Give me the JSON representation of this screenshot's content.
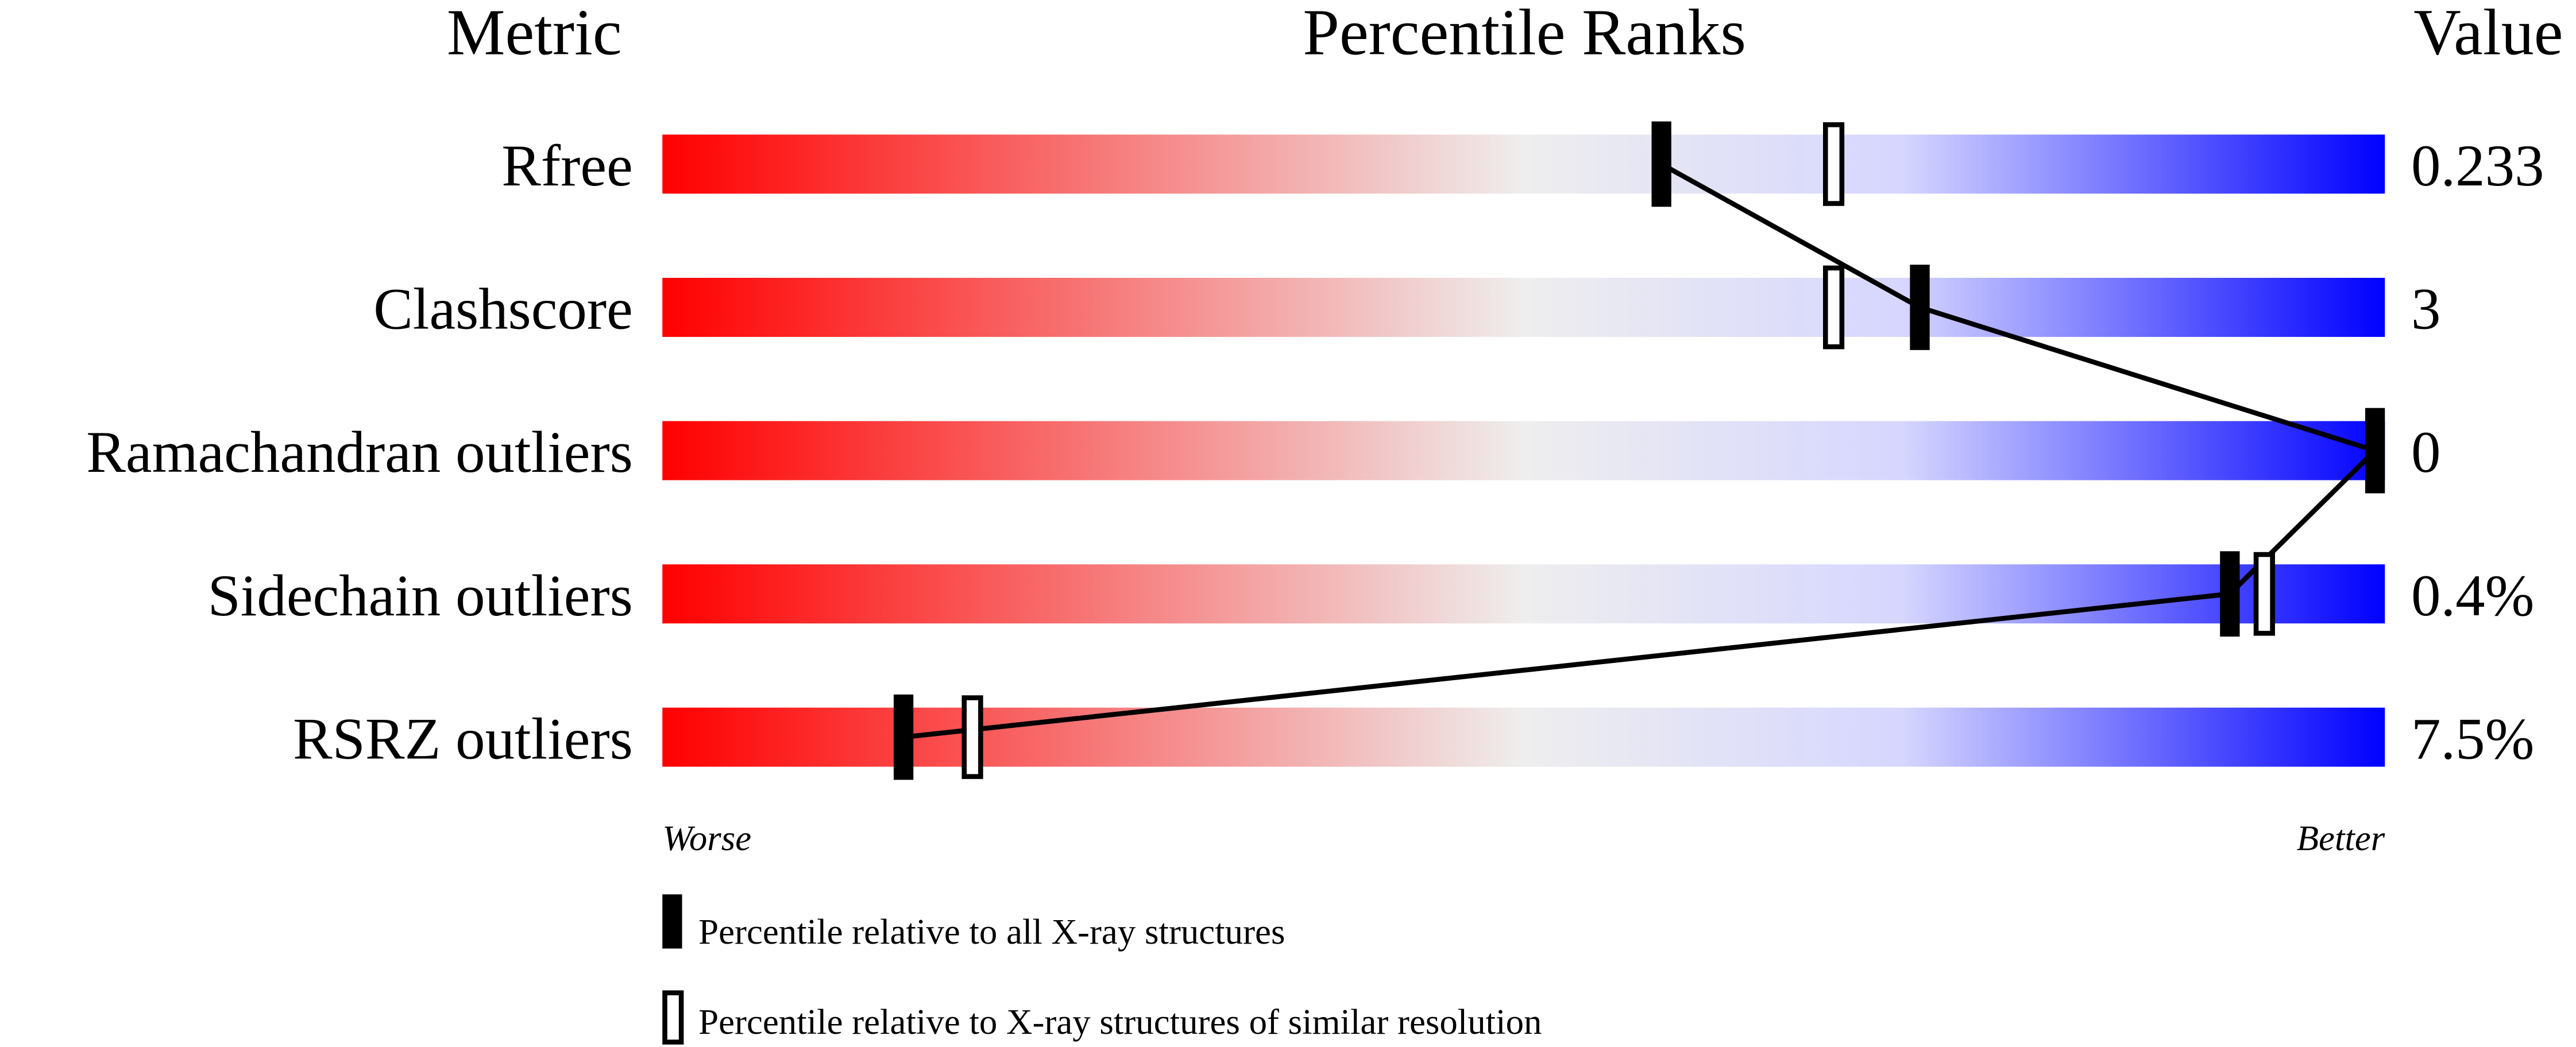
{
  "chart_data": {
    "type": "bar",
    "headers": {
      "metric": "Metric",
      "ranks": "Percentile Ranks",
      "value": "Value"
    },
    "xlim": [
      0,
      100
    ],
    "metrics": [
      {
        "name": "Rfree",
        "value": "0.233",
        "percentile_all": 58,
        "percentile_similar": 68
      },
      {
        "name": "Clashscore",
        "value": "3",
        "percentile_all": 73,
        "percentile_similar": 68
      },
      {
        "name": "Ramachandran outliers",
        "value": "0",
        "percentile_all": 100,
        "percentile_similar": null
      },
      {
        "name": "Sidechain outliers",
        "value": "0.4%",
        "percentile_all": 91,
        "percentile_similar": 93
      },
      {
        "name": "RSRZ outliers",
        "value": "7.5%",
        "percentile_all": 14,
        "percentile_similar": 18
      }
    ],
    "axis_labels": {
      "worse": "Worse",
      "better": "Better"
    },
    "legend": {
      "all": "Percentile relative to all X-ray structures",
      "similar": "Percentile relative to X-ray structures of similar resolution"
    },
    "colors": {
      "worse": "#ff0000",
      "middle": "#eeeeee",
      "better": "#0000ff",
      "marker": "#000000"
    }
  }
}
